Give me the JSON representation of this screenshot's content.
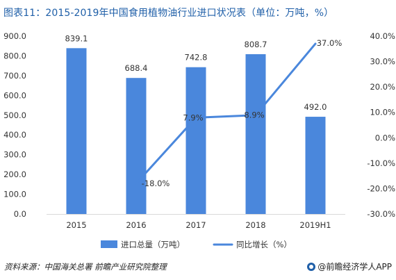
{
  "header": {
    "title": "图表11：2015-2019年中国食用植物油行业进口状况表（单位：万吨，%）"
  },
  "footer": {
    "source": "资料来源：中国海关总署 前瞻产业研究院整理",
    "brand": "@前瞻经济学人APP"
  },
  "colors": {
    "bar": "#4a87dc",
    "line": "#4a87dc",
    "text": "#333333",
    "title": "#1f5fa8"
  },
  "chart_data": {
    "type": "bar",
    "categories": [
      "2015",
      "2016",
      "2017",
      "2018",
      "2019H1"
    ],
    "series": [
      {
        "name": "进口总量（万吨）",
        "type": "bar",
        "axis": "left",
        "values": [
          839.1,
          688.4,
          742.8,
          808.7,
          492.0
        ],
        "labels": [
          "839.1",
          "688.4",
          "742.8",
          "808.7",
          "492.0"
        ]
      },
      {
        "name": "同比增长（%）",
        "type": "line",
        "axis": "right",
        "values": [
          null,
          -18.0,
          7.9,
          8.9,
          37.0
        ],
        "labels": [
          "",
          "-18.0%",
          "7.9%",
          "8.9%",
          "37.0%"
        ]
      }
    ],
    "y_left": {
      "min": 0,
      "max": 900,
      "ticks": [
        "0.0",
        "100.0",
        "200.0",
        "300.0",
        "400.0",
        "500.0",
        "600.0",
        "700.0",
        "800.0",
        "900.0"
      ]
    },
    "y_right": {
      "min": -30,
      "max": 40,
      "ticks": [
        "-30.0%",
        "-20.0%",
        "-10.0%",
        "0.0%",
        "10.0%",
        "20.0%",
        "30.0%",
        "40.0%"
      ]
    },
    "legend_position": "bottom-center",
    "grid": false
  }
}
